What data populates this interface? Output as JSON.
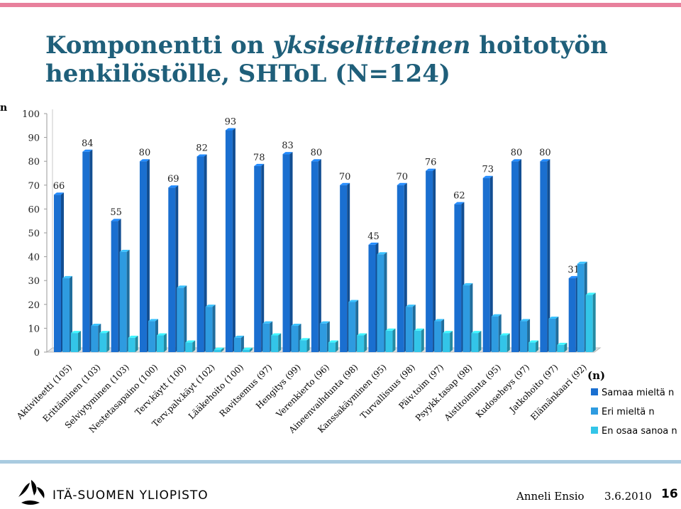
{
  "slide": {
    "title_part1": "Komponentti on ",
    "title_italic": "yksiselitteinen",
    "title_part2": " hoitotyön henkilöstölle, SHToL (N=124)",
    "side_label": "n",
    "university": "ITÄ-SUOMEN YLIOPISTO",
    "author": "Anneli Ensio",
    "date": "3.6.2010",
    "page_number": "16"
  },
  "chart_data": {
    "type": "bar",
    "title": "",
    "xlabel": "",
    "ylabel": "",
    "ylim": [
      0,
      100
    ],
    "yticks": [
      "0",
      "10",
      "20",
      "30",
      "40",
      "50",
      "60",
      "70",
      "80",
      "90",
      "100"
    ],
    "legend_title": "(n)",
    "legend_position": "right",
    "grid": false,
    "categories": [
      "Aktiviteetti (105)",
      "Erittäminen (103)",
      "Selviytyminen (103)",
      "Nestetasapaino (100)",
      "Terv.käytt (100)",
      "Terv.palv.käyt (102)",
      "Lääkehoito (100)",
      "Ravitsemus (97)",
      "Hengitys (99)",
      "Verenkierto (96)",
      "Aineenvaihdunta (98)",
      "Kanssakäyminen (95)",
      "Turvallisuus (98)",
      "Päiv.toim (97)",
      "Psyykk.tasap (98)",
      "Aistitoiminta (95)",
      "Kudoseheys (97)",
      "Jatkohoito (97)",
      "Elämänkaari (92)"
    ],
    "series": [
      {
        "name": "Samaa mieltä n",
        "color": "#1a6fd0",
        "values": [
          66,
          84,
          55,
          80,
          69,
          82,
          93,
          78,
          83,
          80,
          70,
          45,
          70,
          76,
          62,
          73,
          80,
          80,
          31
        ],
        "labels": [
          "66",
          "84",
          "55",
          "80",
          "69",
          "82",
          "93",
          "78",
          "83",
          "80",
          "70",
          "45",
          "70",
          "76",
          "62",
          "73",
          "80",
          "80",
          "31"
        ]
      },
      {
        "name": "Eri mieltä n",
        "color": "#2e9be0",
        "values": [
          31,
          11,
          42,
          13,
          27,
          19,
          6,
          12,
          11,
          12,
          21,
          41,
          19,
          13,
          28,
          15,
          13,
          14,
          37
        ]
      },
      {
        "name": "En osaa sanoa n",
        "color": "#33c5e8",
        "values": [
          8,
          8,
          6,
          7,
          4,
          1,
          1,
          7,
          5,
          4,
          7,
          9,
          9,
          8,
          8,
          7,
          4,
          3,
          24
        ]
      }
    ]
  }
}
